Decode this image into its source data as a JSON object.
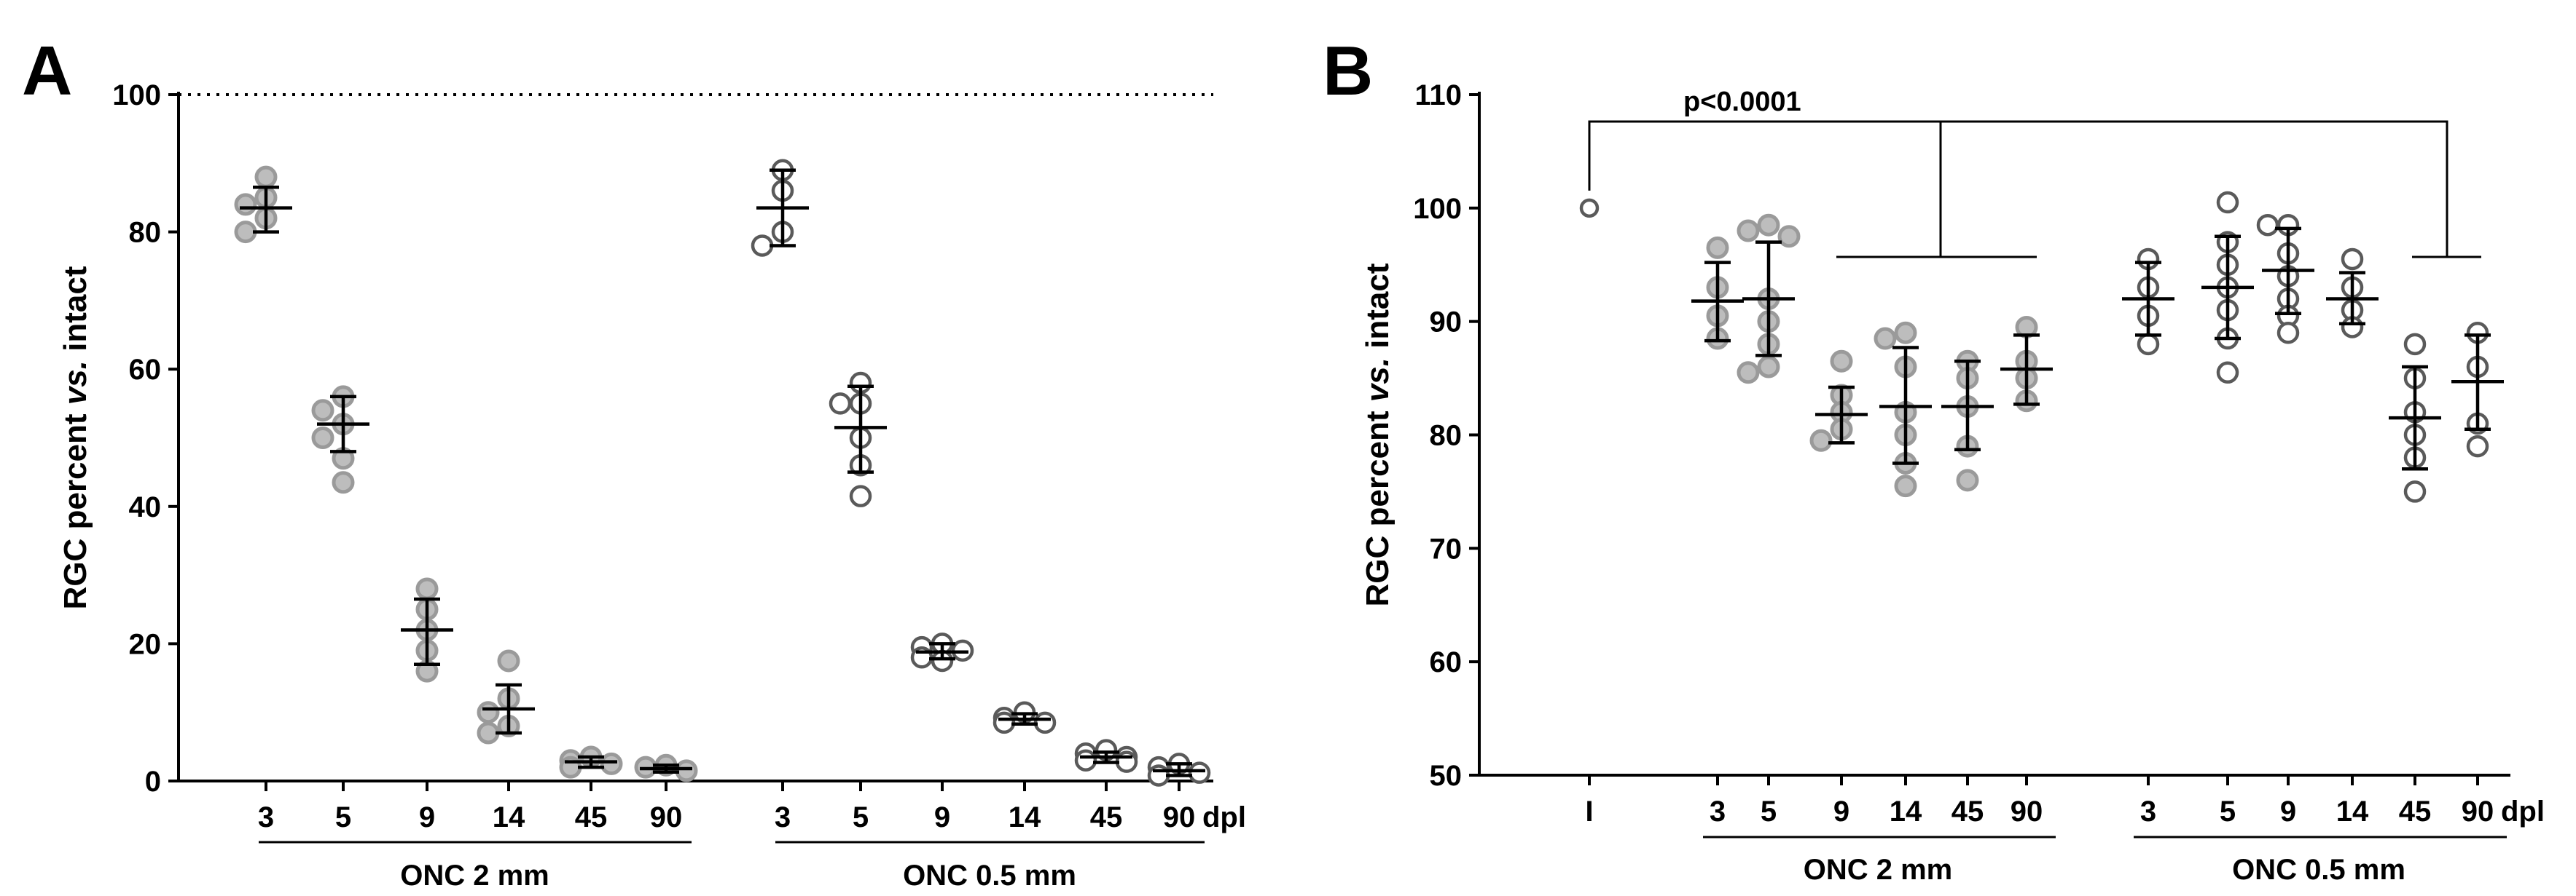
{
  "figure": {
    "panel_a_label": "A",
    "panel_b_label": "B"
  },
  "chart_data": [
    {
      "type": "scatter",
      "panel": "A",
      "ylabel_pre": "RGC percent ",
      "ylabel_italic": "vs.",
      "ylabel_post": " intact",
      "ylim": [
        0,
        100
      ],
      "yticks": [
        0,
        20,
        40,
        60,
        80,
        100
      ],
      "reference_line": {
        "y": 100,
        "style": "dotted"
      },
      "unit_label": "dpl",
      "groups": [
        {
          "name": "ONC 2 mm",
          "categories": [
            {
              "label": "3",
              "mean": 83.5,
              "sd_low": 80,
              "sd_high": 86.5,
              "points": [
                88,
                85,
                84,
                82,
                80
              ],
              "marker": "filled"
            },
            {
              "label": "5",
              "mean": 52,
              "sd_low": 48,
              "sd_high": 56,
              "points": [
                56,
                54,
                52,
                50,
                47,
                43.5
              ],
              "marker": "filled"
            },
            {
              "label": "9",
              "mean": 22,
              "sd_low": 17,
              "sd_high": 26.5,
              "points": [
                28,
                25,
                22,
                19,
                16
              ],
              "marker": "filled"
            },
            {
              "label": "14",
              "mean": 10.5,
              "sd_low": 7,
              "sd_high": 14,
              "points": [
                17.5,
                12,
                10,
                8,
                7
              ],
              "marker": "filled"
            },
            {
              "label": "45",
              "mean": 2.8,
              "sd_low": 2,
              "sd_high": 3.5,
              "points": [
                3.5,
                3,
                2.5,
                2
              ],
              "marker": "filled"
            },
            {
              "label": "90",
              "mean": 1.8,
              "sd_low": 1.3,
              "sd_high": 2.3,
              "points": [
                2.3,
                2,
                1.5
              ],
              "marker": "filled"
            }
          ]
        },
        {
          "name": "ONC 0.5 mm",
          "categories": [
            {
              "label": "3",
              "mean": 83.5,
              "sd_low": 78,
              "sd_high": 89,
              "points": [
                89,
                86,
                80,
                78
              ],
              "marker": "open"
            },
            {
              "label": "5",
              "mean": 51.5,
              "sd_low": 45,
              "sd_high": 57.5,
              "points": [
                58,
                55,
                55,
                50,
                46,
                41.5
              ],
              "marker": "open"
            },
            {
              "label": "9",
              "mean": 18.8,
              "sd_low": 17.8,
              "sd_high": 20,
              "points": [
                20,
                19.5,
                19,
                18,
                17.5
              ],
              "marker": "open"
            },
            {
              "label": "14",
              "mean": 9,
              "sd_low": 8.3,
              "sd_high": 9.8,
              "points": [
                10,
                9.2,
                8.5,
                8.5
              ],
              "marker": "open"
            },
            {
              "label": "45",
              "mean": 3.5,
              "sd_low": 2.7,
              "sd_high": 4.2,
              "points": [
                4.5,
                4,
                3.5,
                3,
                2.8
              ],
              "marker": "open"
            },
            {
              "label": "90",
              "mean": 1.5,
              "sd_low": 0.8,
              "sd_high": 2.5,
              "points": [
                2.5,
                2,
                1.2,
                0.8
              ],
              "marker": "open"
            }
          ]
        }
      ]
    },
    {
      "type": "scatter",
      "panel": "B",
      "ylabel_pre": "RGC percent ",
      "ylabel_italic": "vs.",
      "ylabel_post": " intact",
      "ylim": [
        50,
        110
      ],
      "yticks": [
        50,
        60,
        70,
        80,
        90,
        100,
        110
      ],
      "unit_label": "dpl",
      "annotation": "p<0.0001",
      "intact": {
        "label": "I",
        "mean": 100,
        "points": [
          100
        ],
        "marker": "open"
      },
      "groups": [
        {
          "name": "ONC 2 mm",
          "categories": [
            {
              "label": "3",
              "mean": 91.8,
              "sd_low": 88.3,
              "sd_high": 95.2,
              "points": [
                96.5,
                93,
                90.5,
                88.5
              ],
              "marker": "filled"
            },
            {
              "label": "5",
              "mean": 92,
              "sd_low": 87,
              "sd_high": 97,
              "points": [
                98.5,
                98,
                97.5,
                92,
                90,
                88,
                86,
                85.5
              ],
              "marker": "filled"
            },
            {
              "label": "9",
              "mean": 81.8,
              "sd_low": 79.3,
              "sd_high": 84.2,
              "points": [
                86.5,
                83.5,
                82,
                80.5,
                79.5
              ],
              "marker": "filled"
            },
            {
              "label": "14",
              "mean": 82.5,
              "sd_low": 77.5,
              "sd_high": 87.7,
              "points": [
                89,
                88.5,
                86,
                82,
                80,
                77.5,
                75.5
              ],
              "marker": "filled"
            },
            {
              "label": "45",
              "mean": 82.5,
              "sd_low": 78.7,
              "sd_high": 86.5,
              "points": [
                86.5,
                85,
                82.5,
                79,
                76
              ],
              "marker": "filled"
            },
            {
              "label": "90",
              "mean": 85.8,
              "sd_low": 82.7,
              "sd_high": 88.8,
              "points": [
                89.5,
                86.5,
                85,
                83
              ],
              "marker": "filled"
            }
          ]
        },
        {
          "name": "ONC 0.5 mm",
          "categories": [
            {
              "label": "3",
              "mean": 92,
              "sd_low": 88.8,
              "sd_high": 95.2,
              "points": [
                95.5,
                93,
                90.5,
                88
              ],
              "marker": "open"
            },
            {
              "label": "5",
              "mean": 93,
              "sd_low": 88.5,
              "sd_high": 97.5,
              "points": [
                100.5,
                97,
                95,
                93,
                91,
                88.5,
                85.5
              ],
              "marker": "open"
            },
            {
              "label": "9",
              "mean": 94.5,
              "sd_low": 90.7,
              "sd_high": 98.2,
              "points": [
                98.5,
                98.5,
                96,
                94,
                92,
                90.5,
                89
              ],
              "marker": "open"
            },
            {
              "label": "14",
              "mean": 92,
              "sd_low": 89.8,
              "sd_high": 94.3,
              "points": [
                95.5,
                93,
                91,
                89.5
              ],
              "marker": "open"
            },
            {
              "label": "45",
              "mean": 81.5,
              "sd_low": 77,
              "sd_high": 86,
              "points": [
                88,
                85,
                82,
                80,
                78,
                75
              ],
              "marker": "open"
            },
            {
              "label": "90",
              "mean": 84.7,
              "sd_low": 80.5,
              "sd_high": 88.8,
              "points": [
                89,
                86,
                81,
                79
              ],
              "marker": "open"
            }
          ]
        }
      ]
    }
  ]
}
